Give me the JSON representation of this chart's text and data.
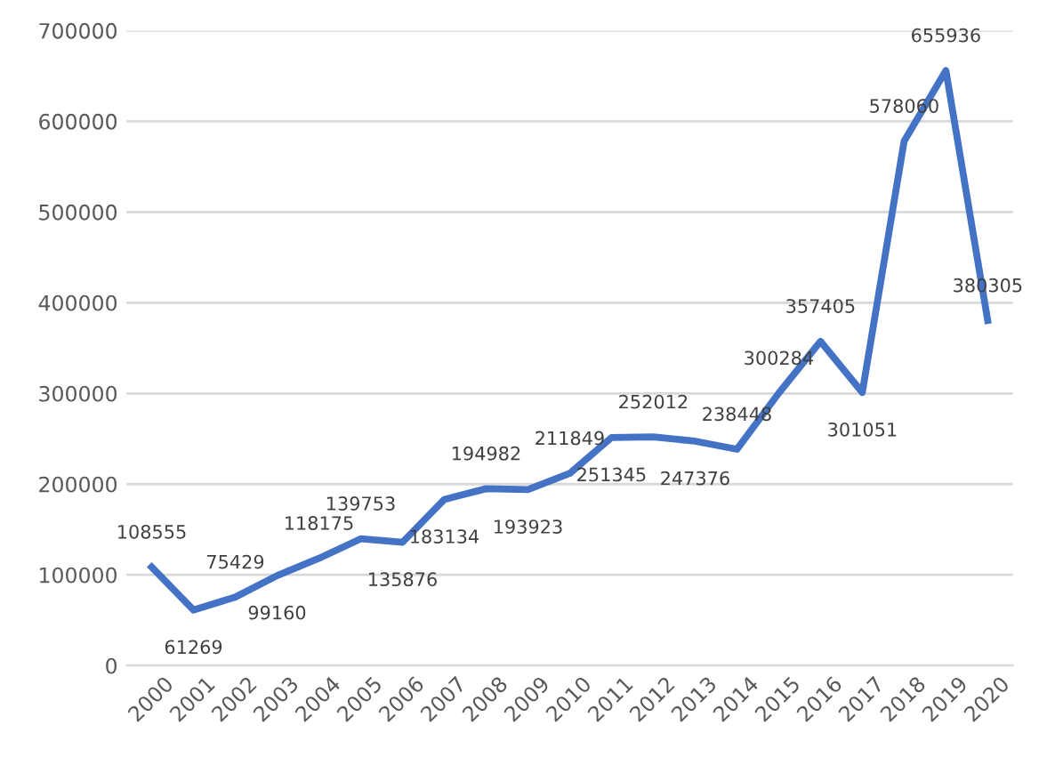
{
  "chart_data": {
    "type": "line",
    "categories": [
      "2000",
      "2001",
      "2002",
      "2003",
      "2004",
      "2005",
      "2006",
      "2007",
      "2008",
      "2009",
      "2010",
      "2011",
      "2012",
      "2013",
      "2014",
      "2015",
      "2016",
      "2017",
      "2018",
      "2019",
      "2020"
    ],
    "series": [
      {
        "color": "#4472c4",
        "values": [
          108555,
          61269,
          75429,
          99160,
          118175,
          139753,
          135876,
          183134,
          194982,
          193923,
          211849,
          251345,
          252012,
          247376,
          238448,
          300284,
          357405,
          301051,
          578060,
          655936,
          380305
        ]
      }
    ],
    "ylim": [
      0,
      700000
    ],
    "yticks": [
      0,
      100000,
      200000,
      300000,
      400000,
      500000,
      600000,
      700000
    ],
    "grid": "y",
    "data_labels": true,
    "marker": "none",
    "line_style": "solid",
    "legend": false
  }
}
